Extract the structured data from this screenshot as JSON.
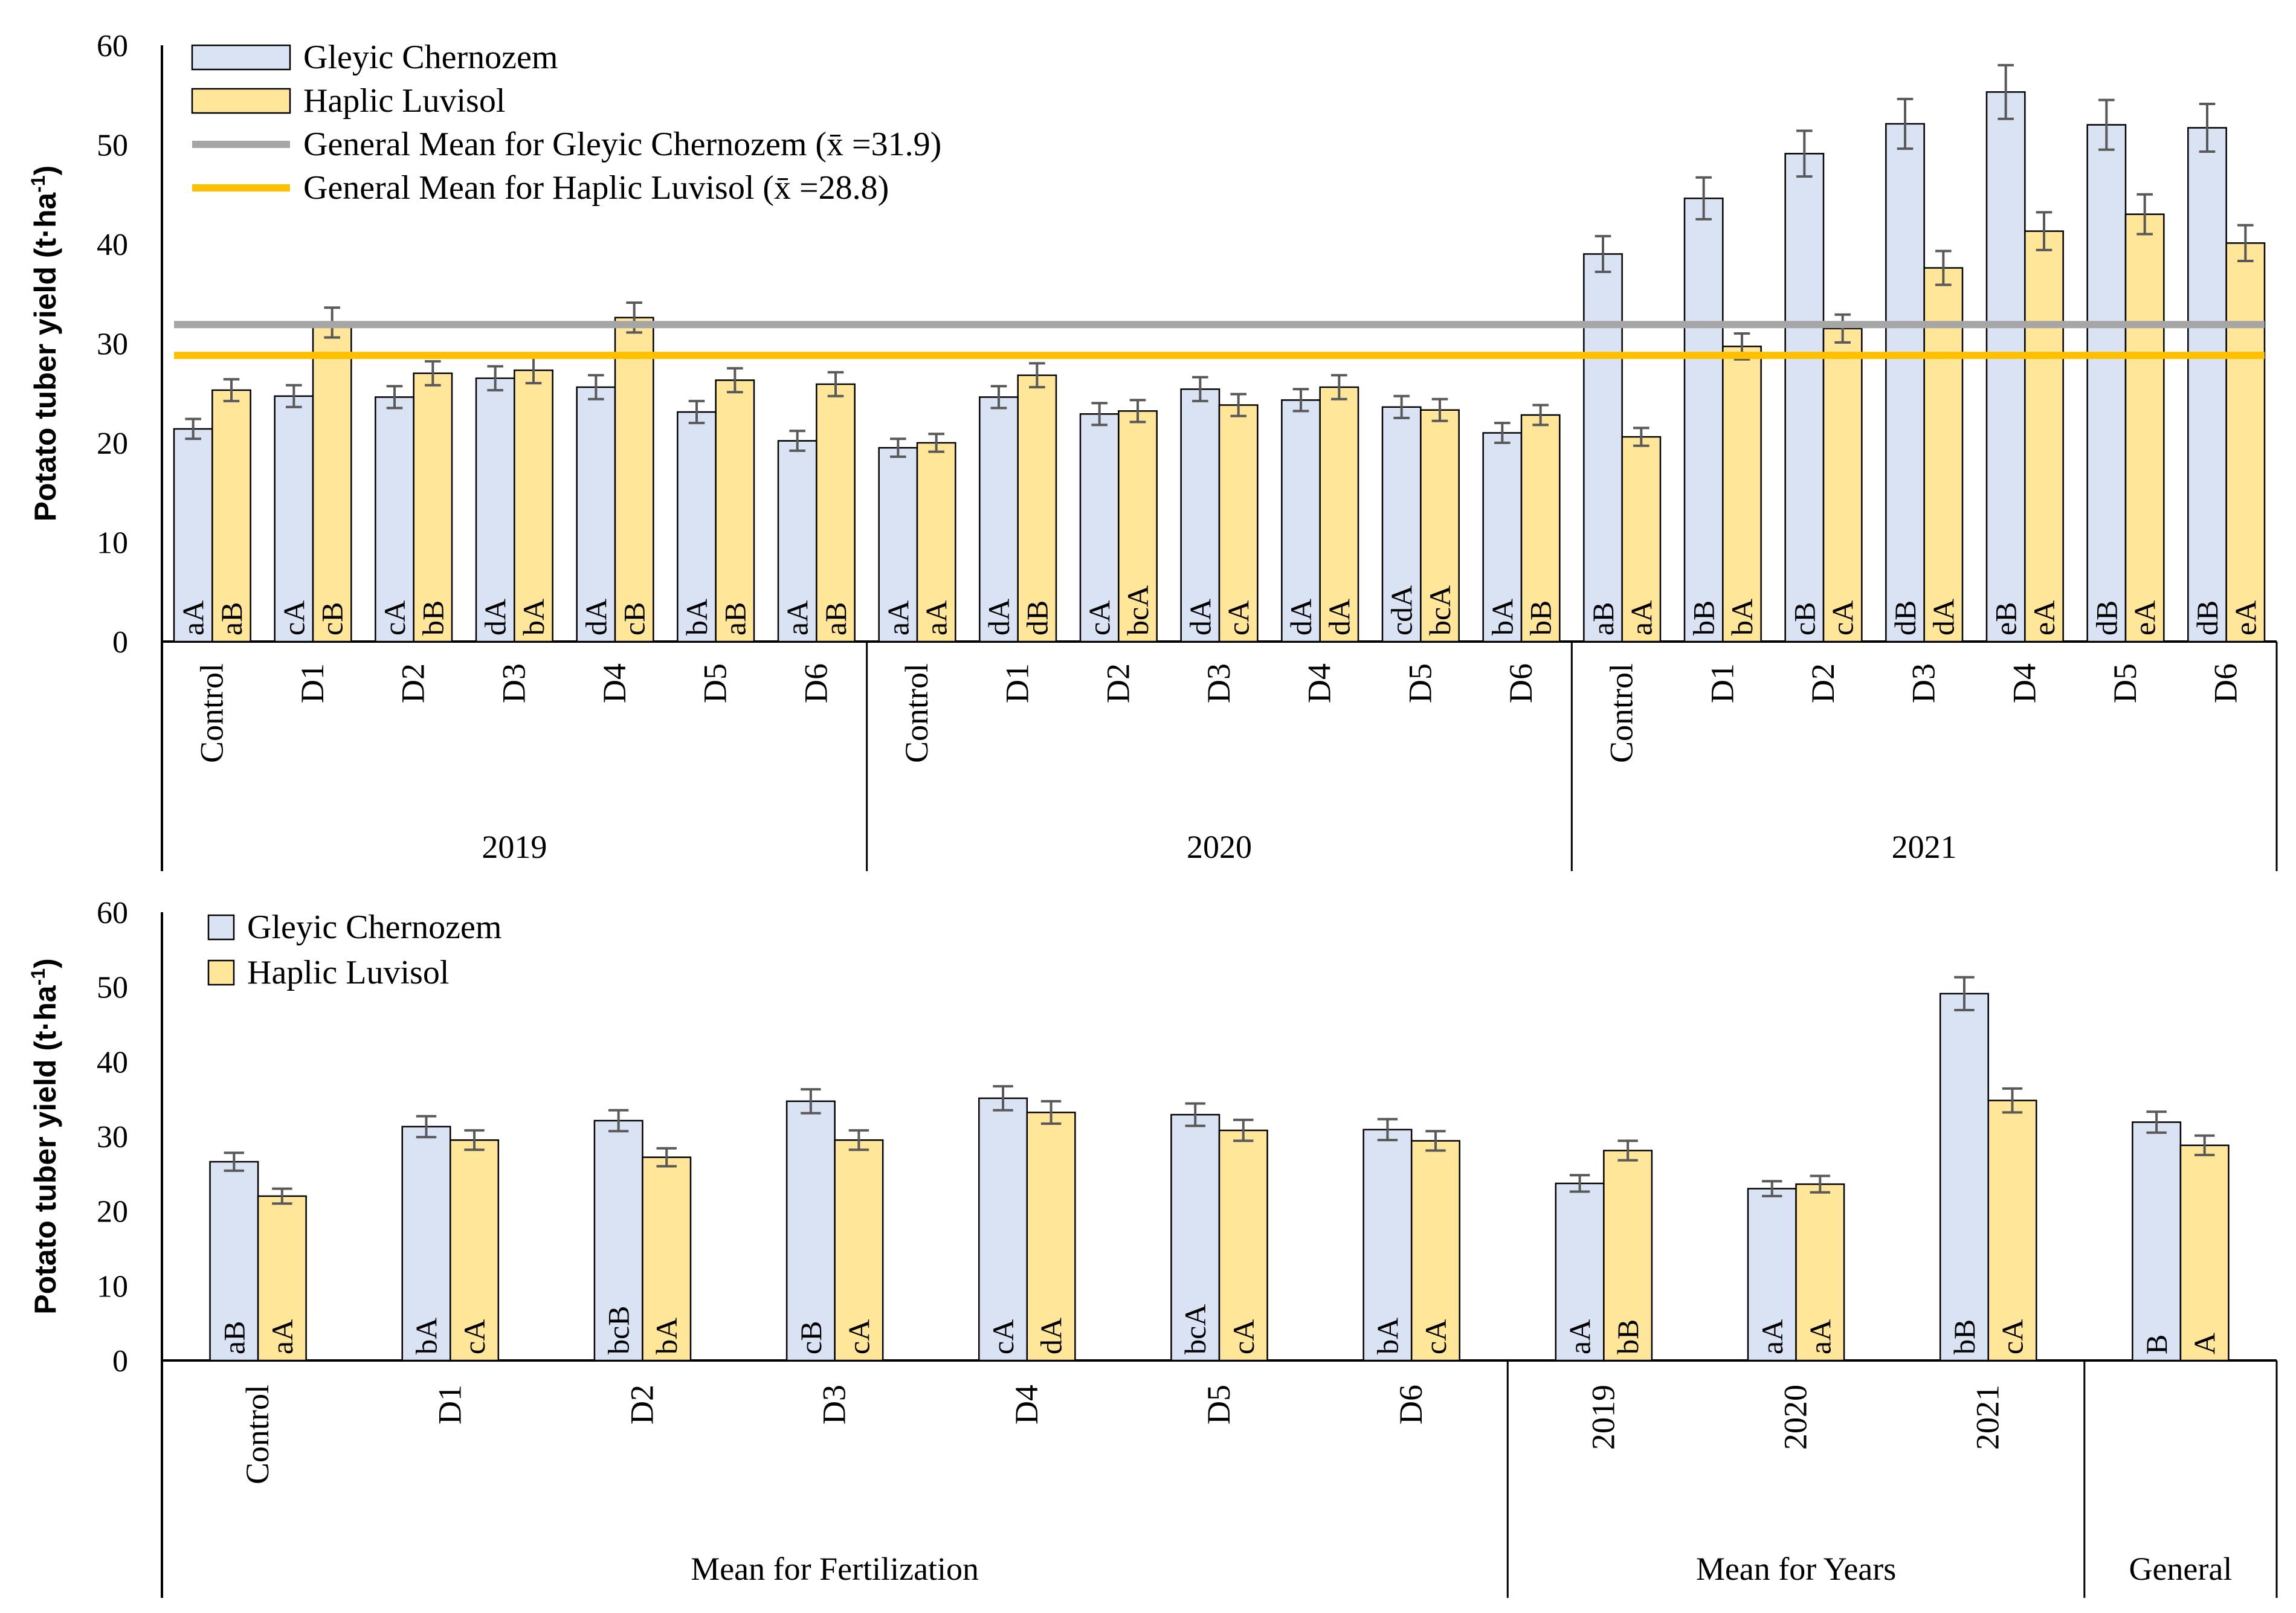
{
  "colors": {
    "chernozem": "#dae3f3",
    "luvisol": "#ffe699",
    "bar_edge": "#000000",
    "error_bar": "#595959",
    "mean_chernozem": "#a6a6a6",
    "mean_luvisol": "#ffc000"
  },
  "chart_data": [
    {
      "type": "bar",
      "title": "",
      "ylabel": "Potato tuber yield (t·ha⁻¹)",
      "ylabel_main": "Potato tuber yield (t·ha",
      "ylabel_sup": "-1",
      "ylabel_close": ")",
      "ylim": [
        0,
        60
      ],
      "yticks": [
        "0",
        "10",
        "20",
        "30",
        "40",
        "50",
        "60"
      ],
      "legend": {
        "placement": "top-left",
        "entries": [
          "Gleyic Chernozem",
          "Haplic Luvisol",
          "General Mean for Gleyic Chernozem (x̄ =31.9)",
          "General Mean for Haplic Luvisol (x̄ =28.8)"
        ]
      },
      "mean_lines": [
        {
          "name": "General Mean for Gleyic Chernozem",
          "value": 31.9
        },
        {
          "name": "General Mean for Haplic Luvisol",
          "value": 28.8
        }
      ],
      "groups": [
        {
          "label": "2019",
          "categories": [
            "Control",
            "D1",
            "D2",
            "D3",
            "D4",
            "D5",
            "D6"
          ],
          "chernozem": [
            21.4,
            24.7,
            24.6,
            26.5,
            25.6,
            23.1,
            20.2
          ],
          "chernozem_err": [
            1.0,
            1.1,
            1.1,
            1.2,
            1.2,
            1.1,
            1.0
          ],
          "chernozem_labels": [
            "aA",
            "cA",
            "cA",
            "dA",
            "dA",
            "bA",
            "aA"
          ],
          "luvisol": [
            25.3,
            32.1,
            27.0,
            27.3,
            32.6,
            26.3,
            25.9
          ],
          "luvisol_err": [
            1.1,
            1.5,
            1.2,
            1.3,
            1.5,
            1.2,
            1.2
          ],
          "luvisol_labels": [
            "aB",
            "cB",
            "bB",
            "bA",
            "cB",
            "aB",
            "aB"
          ]
        },
        {
          "label": "2020",
          "categories": [
            "Control",
            "D1",
            "D2",
            "D3",
            "D4",
            "D5",
            "D6"
          ],
          "chernozem": [
            19.5,
            24.6,
            22.9,
            25.4,
            24.3,
            23.6,
            21.0
          ],
          "chernozem_err": [
            0.9,
            1.1,
            1.1,
            1.2,
            1.1,
            1.1,
            1.0
          ],
          "chernozem_labels": [
            "aA",
            "dA",
            "cA",
            "dA",
            "dA",
            "cdA",
            "bA"
          ],
          "luvisol": [
            20.0,
            26.8,
            23.2,
            23.8,
            25.6,
            23.3,
            22.8
          ],
          "luvisol_err": [
            0.9,
            1.2,
            1.1,
            1.1,
            1.2,
            1.1,
            1.0
          ],
          "luvisol_labels": [
            "aA",
            "dB",
            "bcA",
            "cA",
            "dA",
            "bcA",
            "bB"
          ]
        },
        {
          "label": "2021",
          "categories": [
            "Control",
            "D1",
            "D2",
            "D3",
            "D4",
            "D5",
            "D6"
          ],
          "chernozem": [
            39.0,
            44.6,
            49.1,
            52.1,
            55.3,
            52.0,
            51.7
          ],
          "chernozem_err": [
            1.8,
            2.1,
            2.3,
            2.5,
            2.7,
            2.5,
            2.4
          ],
          "chernozem_labels": [
            "aB",
            "bB",
            "cB",
            "dB",
            "eB",
            "dB",
            "dB"
          ],
          "luvisol": [
            20.6,
            29.7,
            31.5,
            37.6,
            41.3,
            43.0,
            40.1
          ],
          "luvisol_err": [
            0.9,
            1.3,
            1.4,
            1.7,
            1.9,
            2.0,
            1.8
          ],
          "luvisol_labels": [
            "aA",
            "bA",
            "cA",
            "dA",
            "eA",
            "eA",
            "eA"
          ]
        }
      ]
    },
    {
      "type": "bar",
      "title": "",
      "ylabel": "Potato tuber yield (t·ha⁻¹)",
      "ylabel_main": "Potato tuber yield (t·ha",
      "ylabel_sup": "-1",
      "ylabel_close": ")",
      "ylim": [
        0,
        60
      ],
      "yticks": [
        "0",
        "10",
        "20",
        "30",
        "40",
        "50",
        "60"
      ],
      "legend": {
        "placement": "top-left",
        "entries": [
          "Gleyic Chernozem",
          "Haplic Luvisol"
        ]
      },
      "groups": [
        {
          "label": "Mean for Fertilization",
          "categories": [
            "Control",
            "D1",
            "D2",
            "D3",
            "D4",
            "D5",
            "D6"
          ],
          "chernozem": [
            26.6,
            31.3,
            32.1,
            34.7,
            35.1,
            32.9,
            30.9
          ],
          "chernozem_err": [
            1.2,
            1.4,
            1.4,
            1.6,
            1.6,
            1.5,
            1.4
          ],
          "chernozem_labels": [
            "aB",
            "bA",
            "bcB",
            "cB",
            "cA",
            "bcA",
            "bA"
          ],
          "luvisol": [
            22.0,
            29.5,
            27.2,
            29.5,
            33.2,
            30.8,
            29.4
          ],
          "luvisol_err": [
            1.0,
            1.3,
            1.2,
            1.3,
            1.5,
            1.4,
            1.3
          ],
          "luvisol_labels": [
            "aA",
            "cA",
            "bA",
            "cA",
            "dA",
            "cA",
            "cA"
          ]
        },
        {
          "label": "Mean for Years",
          "categories": [
            "2019",
            "2020",
            "2021"
          ],
          "chernozem": [
            23.7,
            23.0,
            49.1
          ],
          "chernozem_err": [
            1.1,
            1.0,
            2.2
          ],
          "chernozem_labels": [
            "aA",
            "aA",
            "bB"
          ],
          "luvisol": [
            28.1,
            23.6,
            34.8
          ],
          "luvisol_err": [
            1.3,
            1.1,
            1.6
          ],
          "luvisol_labels": [
            "bB",
            "aA",
            "cA"
          ]
        },
        {
          "label": "General",
          "categories": [
            ""
          ],
          "chernozem": [
            31.9
          ],
          "chernozem_err": [
            1.4
          ],
          "chernozem_labels": [
            "B"
          ],
          "luvisol": [
            28.8
          ],
          "luvisol_err": [
            1.3
          ],
          "luvisol_labels": [
            "A"
          ]
        }
      ]
    }
  ]
}
